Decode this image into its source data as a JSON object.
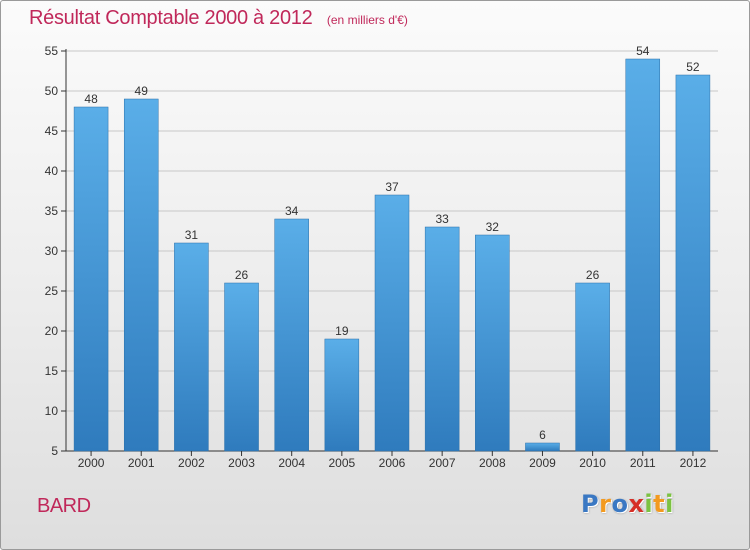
{
  "title": "Résultat Comptable 2000 à 2012",
  "subtitle": "(en milliers d'€)",
  "commune": "BARD",
  "logo": {
    "text": "Proxiti",
    "letters": [
      {
        "char": "P",
        "color": "#3a78c3"
      },
      {
        "char": "r",
        "color": "#f39a1f"
      },
      {
        "char": "o",
        "color": "#3a78c3"
      },
      {
        "char": "x",
        "color": "#d62f27"
      },
      {
        "char": "i",
        "color": "#7cc242"
      },
      {
        "char": "t",
        "color": "#f39a1f"
      },
      {
        "char": "i",
        "color": "#7cc242"
      }
    ]
  },
  "colors": {
    "title": "#c0285a",
    "bar_light": "#5aaee8",
    "bar_dark": "#2f7bbd",
    "axis": "#333333",
    "grid": "#c8c8c8"
  },
  "chart_data": {
    "type": "bar",
    "categories": [
      "2000",
      "2001",
      "2002",
      "2003",
      "2004",
      "2005",
      "2006",
      "2007",
      "2008",
      "2009",
      "2010",
      "2011",
      "2012"
    ],
    "values": [
      48,
      49,
      31,
      26,
      34,
      19,
      37,
      33,
      32,
      6,
      26,
      54,
      52
    ],
    "ylim": [
      5,
      55
    ],
    "yticks": [
      5,
      10,
      15,
      20,
      25,
      30,
      35,
      40,
      45,
      50,
      55
    ],
    "grid": "horizontal",
    "data_labels": true,
    "legend": "none"
  }
}
